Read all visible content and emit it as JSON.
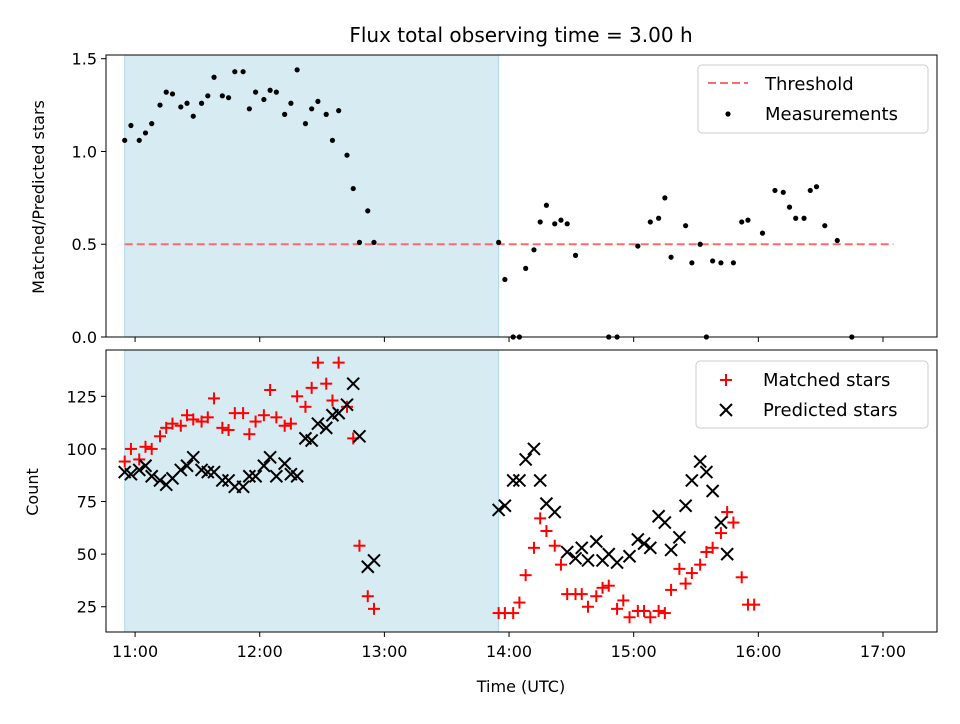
{
  "chart_data": [
    {
      "type": "scatter",
      "title": "Flux total observing time = 3.00 h",
      "xlabel": "",
      "ylabel": "Matched/Predicted stars",
      "ylim": [
        0,
        1.52
      ],
      "yticks": [
        0,
        0.5,
        1.0,
        1.5
      ],
      "ytick_labels": [
        "0.0",
        "0.5",
        "1.0",
        "1.5"
      ],
      "legend_position": "top-right",
      "shaded_span": {
        "start": "10:55",
        "end": "13:55",
        "color": "#add8e6"
      },
      "threshold": {
        "name": "Threshold",
        "value": 0.5,
        "x_start": "10:55",
        "x_end": "17:05",
        "color": "#ff6b6b",
        "style": "dashed"
      },
      "series": [
        {
          "name": "Measurements",
          "color": "#000000",
          "marker": "dot",
          "points": [
            [
              "10:55",
              1.06
            ],
            [
              "10:58",
              1.14
            ],
            [
              "11:02",
              1.06
            ],
            [
              "11:05",
              1.1
            ],
            [
              "11:08",
              1.15
            ],
            [
              "11:12",
              1.25
            ],
            [
              "11:15",
              1.32
            ],
            [
              "11:18",
              1.31
            ],
            [
              "11:22",
              1.24
            ],
            [
              "11:25",
              1.26
            ],
            [
              "11:28",
              1.19
            ],
            [
              "11:32",
              1.26
            ],
            [
              "11:35",
              1.3
            ],
            [
              "11:38",
              1.4
            ],
            [
              "11:42",
              1.3
            ],
            [
              "11:45",
              1.29
            ],
            [
              "11:48",
              1.43
            ],
            [
              "11:52",
              1.43
            ],
            [
              "11:55",
              1.23
            ],
            [
              "11:58",
              1.32
            ],
            [
              "12:02",
              1.28
            ],
            [
              "12:05",
              1.33
            ],
            [
              "12:08",
              1.32
            ],
            [
              "12:12",
              1.2
            ],
            [
              "12:15",
              1.26
            ],
            [
              "12:18",
              1.44
            ],
            [
              "12:22",
              1.15
            ],
            [
              "12:25",
              1.23
            ],
            [
              "12:28",
              1.27
            ],
            [
              "12:32",
              1.2
            ],
            [
              "12:35",
              1.06
            ],
            [
              "12:38",
              1.22
            ],
            [
              "12:42",
              0.98
            ],
            [
              "12:45",
              0.8
            ],
            [
              "12:48",
              0.51
            ],
            [
              "12:52",
              0.68
            ],
            [
              "12:55",
              0.51
            ],
            [
              "13:55",
              0.51
            ],
            [
              "13:58",
              0.31
            ],
            [
              "14:02",
              0.0
            ],
            [
              "14:05",
              0.0
            ],
            [
              "14:08",
              0.37
            ],
            [
              "14:12",
              0.47
            ],
            [
              "14:15",
              0.62
            ],
            [
              "14:18",
              0.71
            ],
            [
              "14:22",
              0.61
            ],
            [
              "14:25",
              0.63
            ],
            [
              "14:28",
              0.61
            ],
            [
              "14:32",
              0.44
            ],
            [
              "14:48",
              0.0
            ],
            [
              "14:52",
              0.0
            ],
            [
              "15:02",
              0.49
            ],
            [
              "15:08",
              0.62
            ],
            [
              "15:12",
              0.64
            ],
            [
              "15:15",
              0.75
            ],
            [
              "15:18",
              0.43
            ],
            [
              "15:25",
              0.6
            ],
            [
              "15:28",
              0.4
            ],
            [
              "15:32",
              0.5
            ],
            [
              "15:35",
              0.0
            ],
            [
              "15:38",
              0.41
            ],
            [
              "15:42",
              0.4
            ],
            [
              "15:48",
              0.4
            ],
            [
              "15:52",
              0.62
            ],
            [
              "15:55",
              0.63
            ],
            [
              "16:02",
              0.56
            ],
            [
              "16:08",
              0.79
            ],
            [
              "16:12",
              0.78
            ],
            [
              "16:15",
              0.7
            ],
            [
              "16:18",
              0.64
            ],
            [
              "16:22",
              0.64
            ],
            [
              "16:25",
              0.79
            ],
            [
              "16:28",
              0.81
            ],
            [
              "16:32",
              0.6
            ],
            [
              "16:38",
              0.52
            ],
            [
              "16:45",
              0.0
            ]
          ]
        }
      ]
    },
    {
      "type": "scatter",
      "title": "",
      "xlabel": "Time (UTC)",
      "ylabel": "Count",
      "ylim": [
        13,
        147
      ],
      "yticks": [
        25,
        50,
        75,
        100,
        125
      ],
      "ytick_labels": [
        "25",
        "50",
        "75",
        "100",
        "125"
      ],
      "xlim": [
        "10:46",
        "17:26"
      ],
      "xticks": [
        "11:00",
        "12:00",
        "13:00",
        "14:00",
        "15:00",
        "16:00",
        "17:00"
      ],
      "legend_position": "top-right",
      "shaded_span": {
        "start": "10:55",
        "end": "13:55",
        "color": "#add8e6"
      },
      "series": [
        {
          "name": "Matched stars",
          "color": "#ff0000",
          "marker": "plus",
          "points": [
            [
              "10:55",
              94
            ],
            [
              "10:58",
              100
            ],
            [
              "11:02",
              95
            ],
            [
              "11:05",
              101
            ],
            [
              "11:08",
              100
            ],
            [
              "11:12",
              106
            ],
            [
              "11:15",
              110
            ],
            [
              "11:18",
              112
            ],
            [
              "11:22",
              111
            ],
            [
              "11:25",
              116
            ],
            [
              "11:28",
              114
            ],
            [
              "11:32",
              113
            ],
            [
              "11:35",
              115
            ],
            [
              "11:38",
              124
            ],
            [
              "11:42",
              110
            ],
            [
              "11:45",
              109
            ],
            [
              "11:48",
              117
            ],
            [
              "11:52",
              117
            ],
            [
              "11:55",
              107
            ],
            [
              "11:58",
              113
            ],
            [
              "12:02",
              116
            ],
            [
              "12:05",
              128
            ],
            [
              "12:08",
              115
            ],
            [
              "12:12",
              111
            ],
            [
              "12:15",
              112
            ],
            [
              "12:18",
              125
            ],
            [
              "12:22",
              120
            ],
            [
              "12:25",
              129
            ],
            [
              "12:28",
              141
            ],
            [
              "12:32",
              131
            ],
            [
              "12:35",
              123
            ],
            [
              "12:38",
              141
            ],
            [
              "12:42",
              120
            ],
            [
              "12:45",
              105
            ],
            [
              "12:48",
              54
            ],
            [
              "12:52",
              30
            ],
            [
              "12:55",
              24
            ],
            [
              "13:55",
              22
            ],
            [
              "13:58",
              22
            ],
            [
              "14:02",
              22
            ],
            [
              "14:05",
              27
            ],
            [
              "14:08",
              40
            ],
            [
              "14:12",
              53
            ],
            [
              "14:15",
              67
            ],
            [
              "14:18",
              61
            ],
            [
              "14:22",
              54
            ],
            [
              "14:25",
              45
            ],
            [
              "14:28",
              31
            ],
            [
              "14:32",
              31
            ],
            [
              "14:35",
              31
            ],
            [
              "14:38",
              25
            ],
            [
              "14:42",
              30
            ],
            [
              "14:45",
              34
            ],
            [
              "14:48",
              35
            ],
            [
              "14:52",
              24
            ],
            [
              "14:55",
              28
            ],
            [
              "14:58",
              20
            ],
            [
              "15:02",
              23
            ],
            [
              "15:05",
              23
            ],
            [
              "15:08",
              20
            ],
            [
              "15:12",
              23
            ],
            [
              "15:15",
              22
            ],
            [
              "15:18",
              33
            ],
            [
              "15:22",
              43
            ],
            [
              "15:25",
              36
            ],
            [
              "15:28",
              41
            ],
            [
              "15:32",
              45
            ],
            [
              "15:35",
              51
            ],
            [
              "15:38",
              53
            ],
            [
              "15:42",
              60
            ],
            [
              "15:45",
              70
            ],
            [
              "15:48",
              65
            ],
            [
              "15:52",
              39
            ],
            [
              "15:55",
              26
            ],
            [
              "15:58",
              26
            ]
          ]
        },
        {
          "name": "Predicted stars",
          "color": "#000000",
          "marker": "x",
          "points": [
            [
              "10:55",
              89
            ],
            [
              "10:58",
              88
            ],
            [
              "11:02",
              90
            ],
            [
              "11:05",
              92
            ],
            [
              "11:08",
              87
            ],
            [
              "11:12",
              85
            ],
            [
              "11:15",
              83
            ],
            [
              "11:18",
              86
            ],
            [
              "11:22",
              90
            ],
            [
              "11:25",
              92
            ],
            [
              "11:28",
              96
            ],
            [
              "11:32",
              90
            ],
            [
              "11:35",
              89
            ],
            [
              "11:38",
              89
            ],
            [
              "11:42",
              85
            ],
            [
              "11:45",
              85
            ],
            [
              "11:48",
              82
            ],
            [
              "11:52",
              82
            ],
            [
              "11:55",
              87
            ],
            [
              "11:58",
              87
            ],
            [
              "12:02",
              92
            ],
            [
              "12:05",
              96
            ],
            [
              "12:08",
              87
            ],
            [
              "12:12",
              93
            ],
            [
              "12:15",
              88
            ],
            [
              "12:18",
              87
            ],
            [
              "12:22",
              105
            ],
            [
              "12:25",
              104
            ],
            [
              "12:28",
              112
            ],
            [
              "12:32",
              110
            ],
            [
              "12:35",
              116
            ],
            [
              "12:38",
              117
            ],
            [
              "12:42",
              121
            ],
            [
              "12:45",
              131
            ],
            [
              "12:48",
              106
            ],
            [
              "12:52",
              44
            ],
            [
              "12:55",
              47
            ],
            [
              "13:55",
              71
            ],
            [
              "13:58",
              73
            ],
            [
              "14:02",
              85
            ],
            [
              "14:05",
              85
            ],
            [
              "14:08",
              95
            ],
            [
              "14:12",
              100
            ],
            [
              "14:15",
              85
            ],
            [
              "14:18",
              74
            ],
            [
              "14:22",
              70
            ],
            [
              "14:28",
              51
            ],
            [
              "14:32",
              48
            ],
            [
              "14:35",
              53
            ],
            [
              "14:38",
              47
            ],
            [
              "14:42",
              56
            ],
            [
              "14:45",
              47
            ],
            [
              "14:48",
              50
            ],
            [
              "14:52",
              46
            ],
            [
              "14:58",
              49
            ],
            [
              "15:02",
              57
            ],
            [
              "15:05",
              55
            ],
            [
              "15:08",
              53
            ],
            [
              "15:12",
              68
            ],
            [
              "15:15",
              65
            ],
            [
              "15:18",
              52
            ],
            [
              "15:22",
              58
            ],
            [
              "15:25",
              73
            ],
            [
              "15:28",
              85
            ],
            [
              "15:32",
              94
            ],
            [
              "15:35",
              89
            ],
            [
              "15:38",
              80
            ],
            [
              "15:42",
              65
            ],
            [
              "15:45",
              50
            ]
          ]
        }
      ]
    }
  ]
}
